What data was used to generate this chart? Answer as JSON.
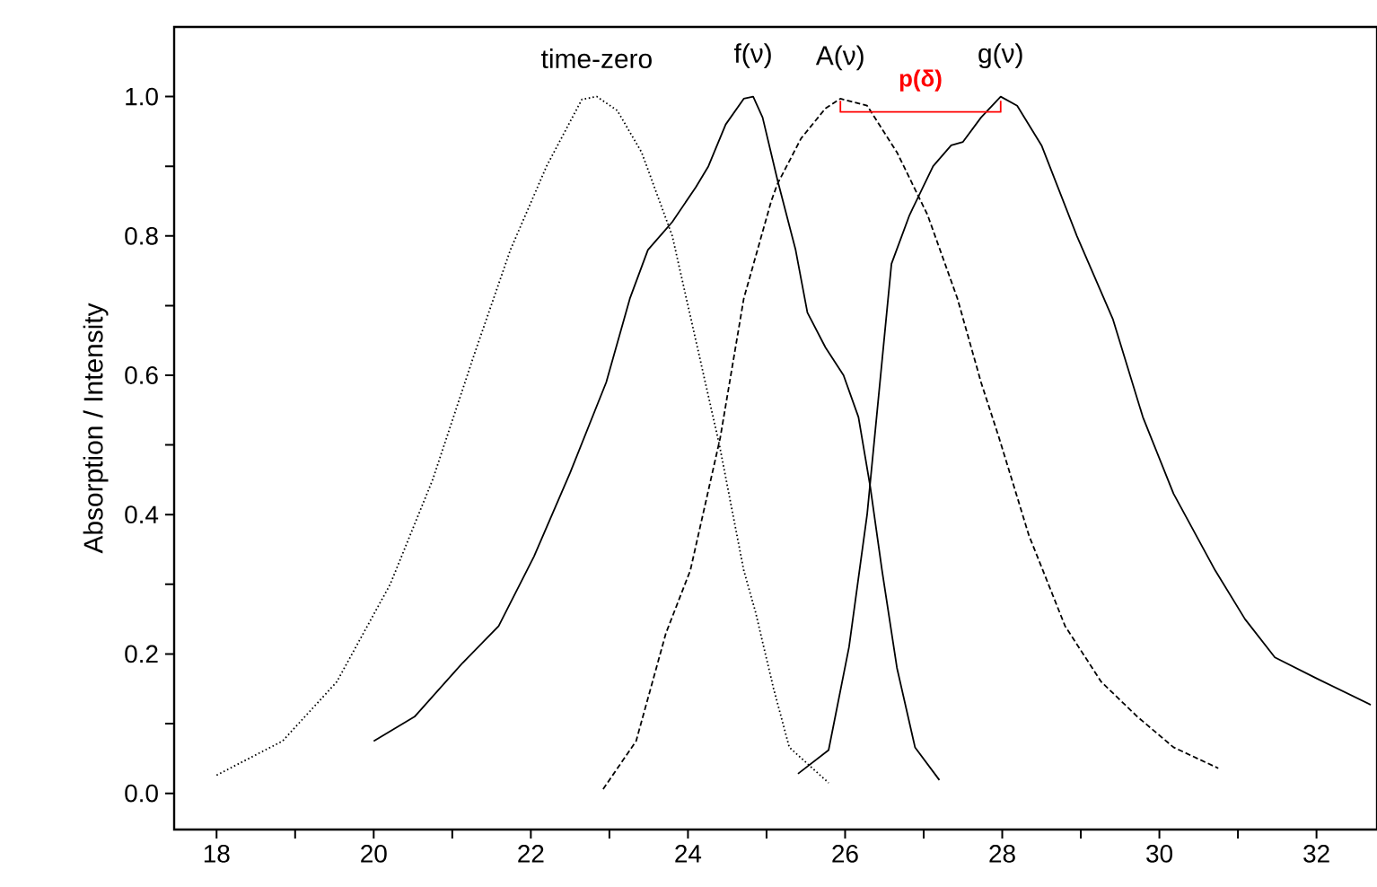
{
  "chart_data": {
    "type": "line",
    "ylabel": "Absorption / Intensity",
    "xlim": [
      17.46,
      32.77
    ],
    "ylim": [
      -0.052,
      1.1
    ],
    "xticks": [
      18,
      {
        "value": 19,
        "label": null
      },
      20,
      {
        "value": 21,
        "label": null
      },
      22,
      {
        "value": 23,
        "label": null
      },
      24,
      {
        "value": 25,
        "label": null
      },
      26,
      {
        "value": 27,
        "label": null
      },
      28,
      {
        "value": 29,
        "label": null
      },
      30,
      {
        "value": 31,
        "label": null
      },
      32
    ],
    "yticks": [
      {
        "value": 0,
        "label": "0.0"
      },
      {
        "value": 0.1,
        "label": null
      },
      0.2,
      {
        "value": 0.3,
        "label": null
      },
      0.4,
      {
        "value": 0.5,
        "label": null
      },
      0.6,
      {
        "value": 0.7,
        "label": null
      },
      0.8,
      {
        "value": 0.9,
        "label": null
      },
      {
        "value": 1,
        "label": "1.0"
      }
    ],
    "grid": false,
    "legend": false,
    "marker": "none",
    "series": [
      {
        "name": "time-zero",
        "color": "#000000",
        "line_style": "dotted",
        "x": [
          18,
          18.84,
          19.53,
          20.21,
          20.75,
          21.28,
          21.74,
          22.2,
          22.65,
          22.84,
          23.1,
          23.41,
          23.8,
          24.02,
          24.4,
          24.71,
          24.86,
          25.09,
          25.29,
          25.79
        ],
        "values": [
          0.026,
          0.075,
          0.16,
          0.3,
          0.45,
          0.63,
          0.78,
          0.9,
          0.996,
          1.0,
          0.98,
          0.92,
          0.8,
          0.69,
          0.5,
          0.32,
          0.26,
          0.15,
          0.066,
          0.015
        ]
      },
      {
        "name": "f(ν)",
        "color": "#000000",
        "line_style": "solid",
        "x": [
          20,
          20.52,
          21.13,
          21.59,
          22.04,
          22.5,
          22.96,
          23.26,
          23.49,
          23.8,
          24.1,
          24.26,
          24.48,
          24.71,
          24.83,
          24.95,
          25.14,
          25.37,
          25.52,
          25.75,
          25.98,
          26.17,
          26.32,
          26.47,
          26.66,
          26.89,
          27.2
        ],
        "values": [
          0.075,
          0.11,
          0.187,
          0.24,
          0.34,
          0.46,
          0.59,
          0.71,
          0.78,
          0.82,
          0.87,
          0.9,
          0.96,
          0.997,
          1.0,
          0.97,
          0.88,
          0.78,
          0.69,
          0.64,
          0.6,
          0.54,
          0.44,
          0.32,
          0.18,
          0.066,
          0.019
        ]
      },
      {
        "name": "A(ν)",
        "color": "#000000",
        "line_style": "dashed",
        "x": [
          22.92,
          23.34,
          23.72,
          24.03,
          24.41,
          24.71,
          25.06,
          25.14,
          25.44,
          25.75,
          25.94,
          26.28,
          26.66,
          27.05,
          27.43,
          27.73,
          27.96,
          28.34,
          28.8,
          29.26,
          29.72,
          30.18,
          30.75
        ],
        "values": [
          0.006,
          0.075,
          0.23,
          0.32,
          0.51,
          0.71,
          0.85,
          0.875,
          0.94,
          0.983,
          0.997,
          0.987,
          0.92,
          0.83,
          0.71,
          0.59,
          0.51,
          0.37,
          0.24,
          0.16,
          0.11,
          0.066,
          0.036
        ]
      },
      {
        "name": "g(ν)",
        "color": "#000000",
        "line_style": "solid",
        "x": [
          25.4,
          25.79,
          26.05,
          26.28,
          26.59,
          26.82,
          27.12,
          27.35,
          27.5,
          27.73,
          27.98,
          28.19,
          28.5,
          28.95,
          29.41,
          29.79,
          30.18,
          30.71,
          31.09,
          31.47,
          32.0,
          32.69
        ],
        "values": [
          0.028,
          0.062,
          0.21,
          0.4,
          0.76,
          0.83,
          0.9,
          0.93,
          0.935,
          0.97,
          1.0,
          0.987,
          0.93,
          0.8,
          0.68,
          0.54,
          0.43,
          0.32,
          0.25,
          0.195,
          0.165,
          0.127
        ]
      },
      {
        "name": "p(δ)",
        "color": "#ff0000",
        "line_style": "solid",
        "x": [
          25.94,
          25.94,
          27.98,
          27.98
        ],
        "values": [
          0.994,
          0.978,
          0.978,
          0.994
        ]
      }
    ]
  }
}
